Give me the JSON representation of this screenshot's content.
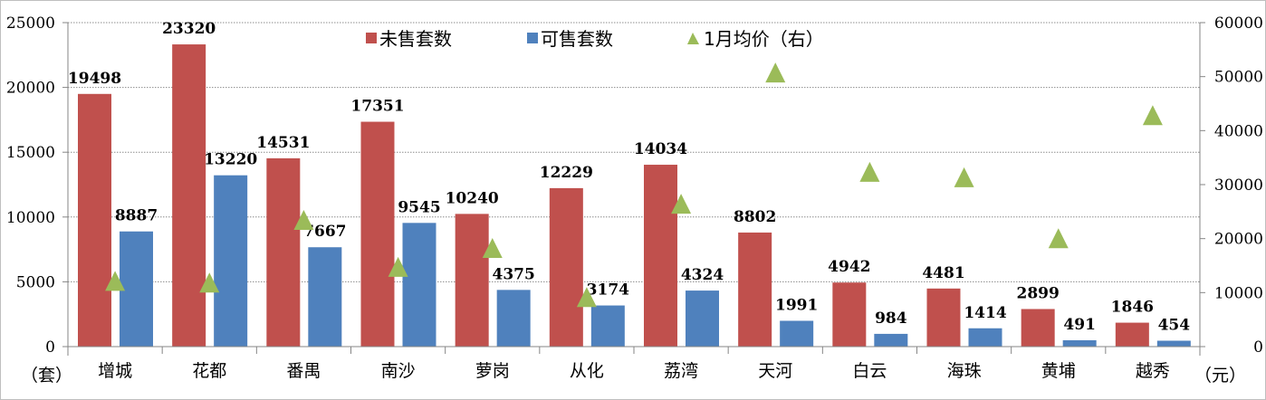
{
  "chart_data": {
    "type": "bar",
    "categories": [
      "增城",
      "花都",
      "番禺",
      "南沙",
      "萝岗",
      "从化",
      "荔湾",
      "天河",
      "白云",
      "海珠",
      "黄埔",
      "越秀"
    ],
    "series": [
      {
        "name": "未售套数",
        "type": "bar",
        "axis": "left",
        "color": "#C0504D",
        "values": [
          19498,
          23320,
          14531,
          17351,
          10240,
          12229,
          14034,
          8802,
          4942,
          4481,
          2899,
          1846
        ]
      },
      {
        "name": "可售套数",
        "type": "bar",
        "axis": "left",
        "color": "#4F81BD",
        "values": [
          8887,
          13220,
          7667,
          9545,
          4375,
          3174,
          4324,
          1991,
          984,
          1414,
          491,
          454
        ]
      },
      {
        "name": "1月均价（右）",
        "type": "scatter",
        "marker": "triangle",
        "axis": "right",
        "color": "#9BBB59",
        "values": [
          12000,
          11700,
          23300,
          14600,
          18100,
          9000,
          26300,
          50600,
          32200,
          31200,
          19900,
          42700
        ]
      }
    ],
    "left_axis": {
      "unit_label": "（套）",
      "ylim": [
        0,
        25000
      ],
      "ticks": [
        0,
        5000,
        10000,
        15000,
        20000,
        25000
      ]
    },
    "right_axis": {
      "unit_label": "（元）",
      "ylim": [
        0,
        60000
      ],
      "ticks": [
        0,
        10000,
        20000,
        30000,
        40000,
        50000,
        60000
      ]
    },
    "grid": "horizontal dotted",
    "legend": "top"
  }
}
